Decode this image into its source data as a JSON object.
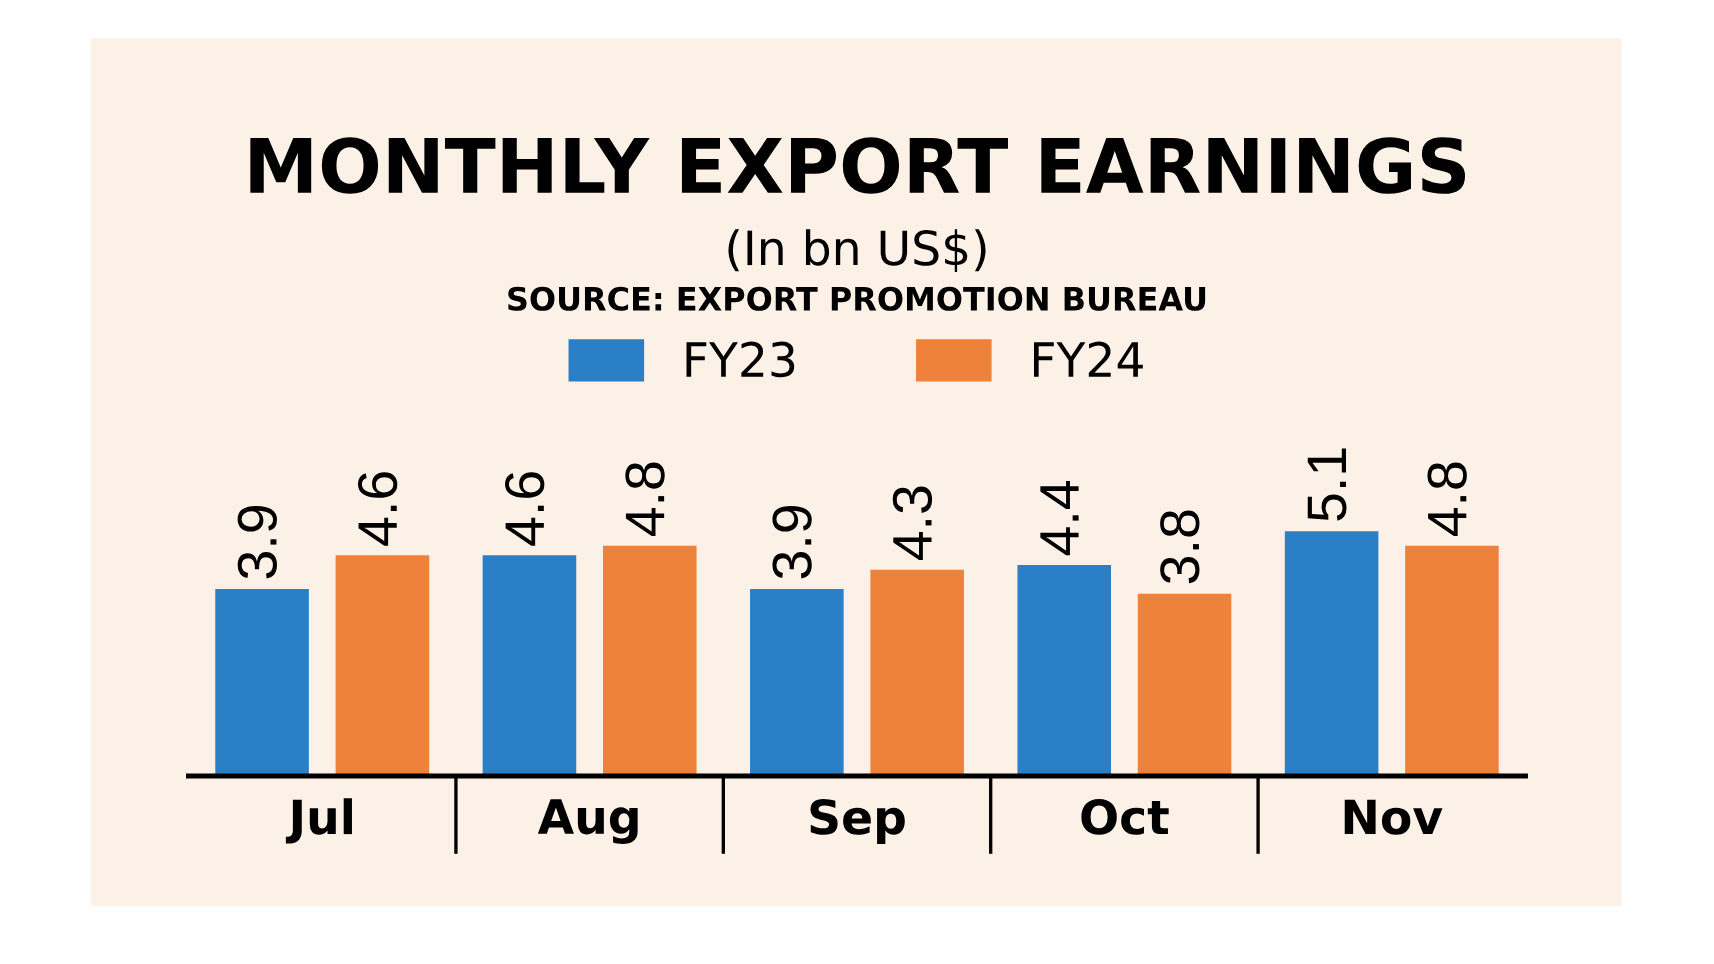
{
  "chart_data": {
    "type": "bar",
    "title": "MONTHLY EXPORT EARNINGS",
    "subtitle": "(In bn US$)",
    "annotations": [
      "SOURCE: EXPORT PROMOTION BUREAU"
    ],
    "categories": [
      "Jul",
      "Aug",
      "Sep",
      "Oct",
      "Nov"
    ],
    "series": [
      {
        "name": "FY23",
        "color": "#2a7fc7",
        "values": [
          3.9,
          4.6,
          3.9,
          4.4,
          5.1
        ]
      },
      {
        "name": "FY24",
        "color": "#ee823b",
        "values": [
          4.6,
          4.8,
          4.3,
          3.8,
          4.8
        ]
      }
    ],
    "data_labels": true,
    "legend": "top",
    "grid": false
  }
}
